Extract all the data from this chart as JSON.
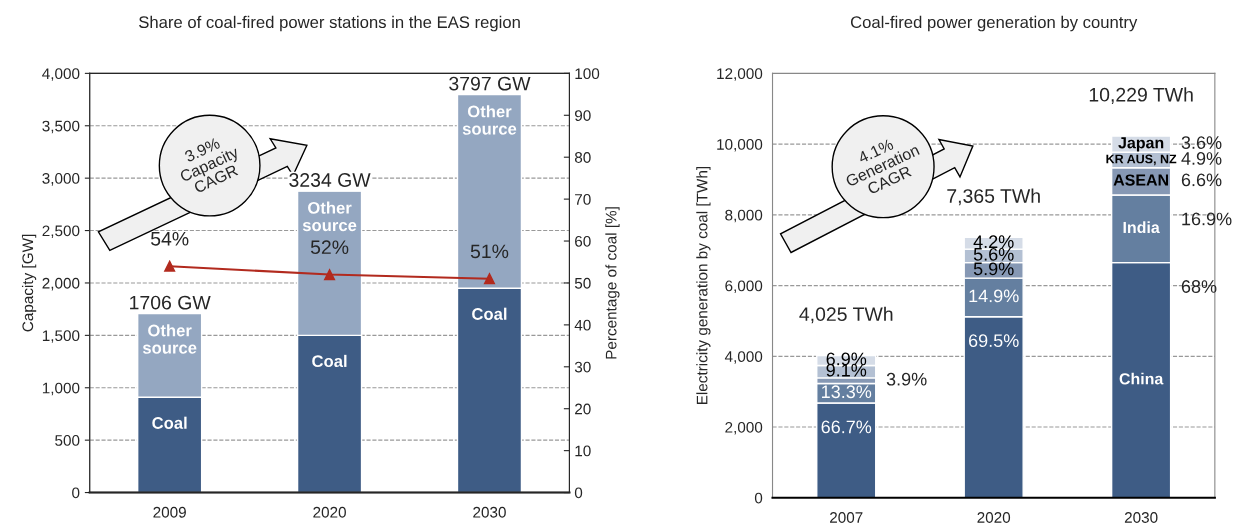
{
  "chart_data": [
    {
      "type": "bar",
      "title": "Share of coal-fired power stations in the EAS region",
      "ylabel": "Capacity [GW]",
      "y2label": "Percentage of coal [%]",
      "categories": [
        "2009",
        "2020",
        "2030"
      ],
      "stacked": true,
      "series": [
        {
          "name": "Coal",
          "color": "#3e5c85",
          "values": [
            910,
            1500,
            1950
          ]
        },
        {
          "name": "Other source",
          "color": "#94a7c1",
          "values": [
            800,
            1380,
            1850
          ]
        },
        {
          "type": "line",
          "axis": "y2",
          "color": "#b22a1e",
          "marker": "triangle",
          "values": [
            54,
            52,
            51
          ],
          "value_labels": [
            "54%",
            "52%",
            "51%"
          ]
        }
      ],
      "ylim": [
        0,
        4000
      ],
      "yticks": [
        0,
        500,
        {
          "value": 1000,
          "label": "1,000"
        },
        {
          "value": 1500,
          "label": "1,500"
        },
        {
          "value": 2000,
          "label": "2,000"
        },
        {
          "value": 2500,
          "label": "2,500"
        },
        {
          "value": 3000,
          "label": "3,000"
        },
        {
          "value": 3500,
          "label": "3,500"
        },
        {
          "value": 4000,
          "label": "4,000"
        }
      ],
      "y2lim": [
        0,
        100
      ],
      "y2ticks": [
        0,
        10,
        20,
        30,
        40,
        50,
        60,
        70,
        80,
        90,
        100
      ],
      "grid": "y",
      "legend": false,
      "annotations": [
        "3.9%\nCapacity\nCAGR",
        {
          "text": "1706 GW",
          "x": "2009",
          "y": 1710
        },
        {
          "text": "3234 GW",
          "x": "2020",
          "y": 2880
        },
        {
          "text": "3797 GW",
          "x": "2030",
          "y": 3800
        }
      ]
    },
    {
      "type": "bar",
      "title": "Coal-fired power generation by country",
      "ylabel": "Electricity generation by coal [TWh]",
      "categories": [
        "2007",
        "2020",
        "2030"
      ],
      "stacked": true,
      "series": [
        {
          "name": "China",
          "color": "#3e5c85",
          "values": [
            2680,
            5120,
            6650
          ]
        },
        {
          "name": "India",
          "color": "#647fa0",
          "values": [
            550,
            1090,
            1910
          ]
        },
        {
          "name": "ASEAN",
          "color": "#8698b4",
          "values": [
            160,
            440,
            770
          ]
        },
        {
          "name": "KR AUS, NZ",
          "color": "#b3c0d3",
          "values": [
            350,
            380,
            440
          ]
        },
        {
          "name": "Japan",
          "color": "#d5dce7",
          "values": [
            285,
            335,
            459
          ]
        }
      ],
      "totals": [
        "4,025 TWh",
        "7,365 TWh",
        "10,229 TWh"
      ],
      "ylim": [
        0,
        12000
      ],
      "yticks": [
        0,
        {
          "value": 2000,
          "label": "2,000"
        },
        {
          "value": 4000,
          "label": "4,000"
        },
        {
          "value": 6000,
          "label": "6,000"
        },
        {
          "value": 8000,
          "label": "8,000"
        },
        {
          "value": 10000,
          "label": "10,000"
        },
        {
          "value": 12000,
          "label": "12,000"
        }
      ],
      "grid": "y",
      "legend": false,
      "annotations": [
        "4.1%\nGeneration\nCAGR",
        {
          "text": "66.7%",
          "x": "2007",
          "y": 2680
        },
        {
          "text": "13.3%",
          "x": "2007",
          "y": 3230
        },
        {
          "text": "3.9%",
          "x": "2007",
          "y": 3390
        },
        {
          "text": "9.1%",
          "x": "2007",
          "y": 3740
        },
        {
          "text": "6.9%",
          "x": "2007",
          "y": 4025
        },
        {
          "text": "69.5%",
          "x": "2020",
          "y": 5120
        },
        {
          "text": "14.9%",
          "x": "2020",
          "y": 6210
        },
        {
          "text": "5.9%",
          "x": "2020",
          "y": 6650
        },
        {
          "text": "5.6%",
          "x": "2020",
          "y": 7030
        },
        {
          "text": "4.2%",
          "x": "2020",
          "y": 7365
        },
        {
          "text": "68%",
          "x": "2030",
          "y": 6650
        },
        {
          "text": "16.9%",
          "x": "2030",
          "y": 8560
        },
        {
          "text": "6.6%",
          "x": "2030",
          "y": 9330
        },
        {
          "text": "4.9%",
          "x": "2030",
          "y": 9770
        },
        {
          "text": "3.6%",
          "x": "2030",
          "y": 10229
        }
      ]
    }
  ]
}
